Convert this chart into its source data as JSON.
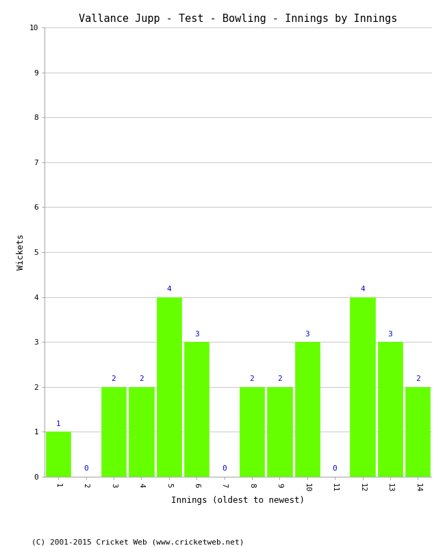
{
  "title": "Vallance Jupp - Test - Bowling - Innings by Innings",
  "xlabel": "Innings (oldest to newest)",
  "ylabel": "Wickets",
  "categories": [
    "1",
    "2",
    "3",
    "4",
    "5",
    "6",
    "7",
    "8",
    "9",
    "10",
    "11",
    "12",
    "13",
    "14"
  ],
  "values": [
    1,
    0,
    2,
    2,
    4,
    3,
    0,
    2,
    2,
    3,
    0,
    4,
    3,
    2
  ],
  "bar_color": "#66ff00",
  "bar_edge_color": "#66ff00",
  "annotation_color": "#0000cc",
  "annotation_fontsize": 8,
  "ylim": [
    0,
    10
  ],
  "yticks": [
    0,
    1,
    2,
    3,
    4,
    5,
    6,
    7,
    8,
    9,
    10
  ],
  "title_fontsize": 11,
  "label_fontsize": 9,
  "tick_fontsize": 8,
  "background_color": "#ffffff",
  "grid_color": "#cccccc",
  "footer_text": "(C) 2001-2015 Cricket Web (www.cricketweb.net)",
  "footer_fontsize": 8,
  "footer_color": "#000000"
}
